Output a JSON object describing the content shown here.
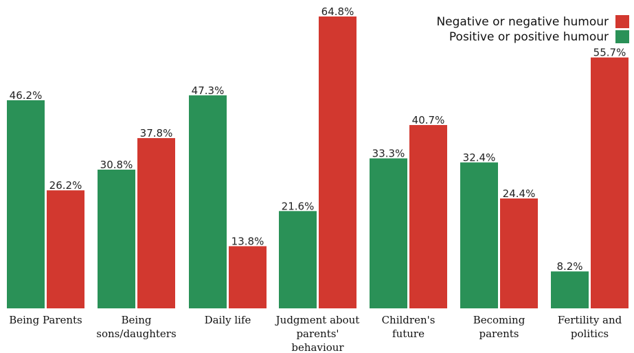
{
  "chart_data": {
    "type": "bar",
    "categories": [
      [
        "Being Parents"
      ],
      [
        "Being",
        "sons/daughters"
      ],
      [
        "Daily life"
      ],
      [
        "Judgment about",
        "parents'",
        "behaviour"
      ],
      [
        "Children's",
        "future"
      ],
      [
        "Becoming",
        "parents"
      ],
      [
        "Fertility and",
        "politics"
      ]
    ],
    "series": [
      {
        "name": "Positive or positive humour",
        "color": "#2a9157",
        "values": [
          46.2,
          30.8,
          47.3,
          21.6,
          33.3,
          32.4,
          8.2
        ],
        "labels": [
          "46.2%",
          "30.8%",
          "47.3%",
          "21.6%",
          "33.3%",
          "32.4%",
          "8.2%"
        ]
      },
      {
        "name": "Negative or negative humour",
        "color": "#d2382f",
        "values": [
          26.2,
          37.8,
          13.8,
          64.8,
          40.7,
          24.4,
          55.7
        ],
        "labels": [
          "26.2%",
          "37.8%",
          "13.8%",
          "64.8%",
          "40.7%",
          "24.4%",
          "55.7%"
        ]
      }
    ],
    "legend": [
      {
        "name": "Negative or negative humour",
        "color": "#d2382f"
      },
      {
        "name": "Positive or positive humour",
        "color": "#2a9157"
      }
    ],
    "legend_position": "top-right",
    "ylim": [
      0,
      64.8
    ],
    "grid": false
  }
}
